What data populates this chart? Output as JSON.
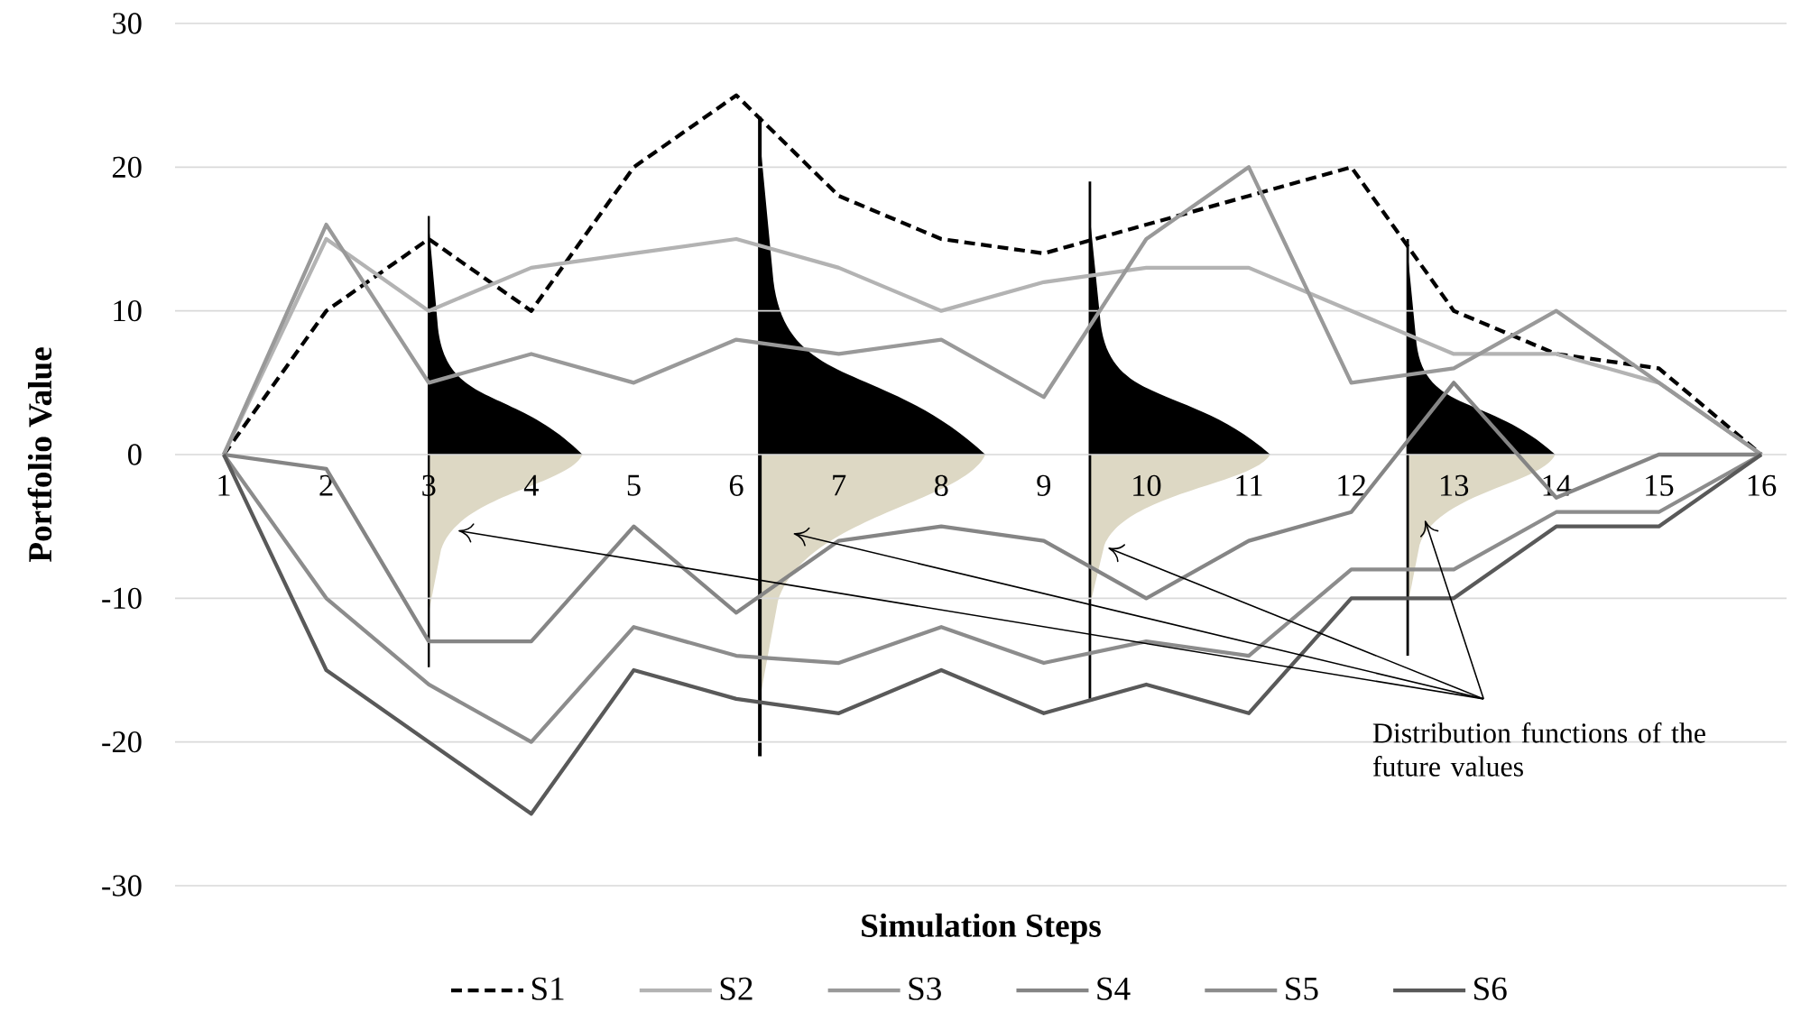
{
  "chart_data": {
    "type": "line",
    "xlabel": "Simulation Steps",
    "ylabel": "Portfolio Value",
    "categories": [
      "1",
      "2",
      "3",
      "4",
      "5",
      "6",
      "7",
      "8",
      "9",
      "10",
      "11",
      "12",
      "13",
      "14",
      "15",
      "16"
    ],
    "ylim": [
      -30,
      30
    ],
    "yticks": [
      -30,
      -20,
      -10,
      0,
      10,
      20,
      30
    ],
    "grid": "y",
    "legend": "bottom",
    "annotations": [
      "Distribution functions of the future values"
    ],
    "series": [
      {
        "name": "S1",
        "color": "#000000",
        "line_style": "dashed",
        "values": [
          0,
          10,
          15,
          10,
          20,
          25,
          18,
          15,
          14,
          16,
          18,
          20,
          10,
          7,
          6,
          0
        ]
      },
      {
        "name": "S2",
        "color": "#b3b3b3",
        "values": [
          0,
          15,
          10,
          13,
          14,
          15,
          13,
          10,
          12,
          13,
          13,
          10,
          7,
          7,
          5,
          0
        ]
      },
      {
        "name": "S3",
        "color": "#999999",
        "values": [
          0,
          16,
          5,
          7,
          5,
          8,
          7,
          8,
          4,
          15,
          20,
          5,
          6,
          10,
          5,
          0
        ]
      },
      {
        "name": "S4",
        "color": "#858585",
        "values": [
          0,
          -1,
          -13,
          -13,
          -5,
          -11,
          -6,
          -5,
          -6,
          -10,
          -6,
          -4,
          5,
          -3,
          0,
          0
        ]
      },
      {
        "name": "S5",
        "color": "#8c8c8c",
        "values": [
          0,
          -10,
          -16,
          -20,
          -12,
          -14,
          -14.5,
          -12,
          -14.5,
          -13,
          -14,
          -8,
          -8,
          -4,
          -4,
          0
        ]
      },
      {
        "name": "S6",
        "color": "#595959",
        "values": [
          0,
          -15,
          -20,
          -25,
          -15,
          -17,
          -18,
          -15,
          -18,
          -16,
          -18,
          -10,
          -10,
          -5,
          -5,
          0
        ]
      }
    ]
  }
}
